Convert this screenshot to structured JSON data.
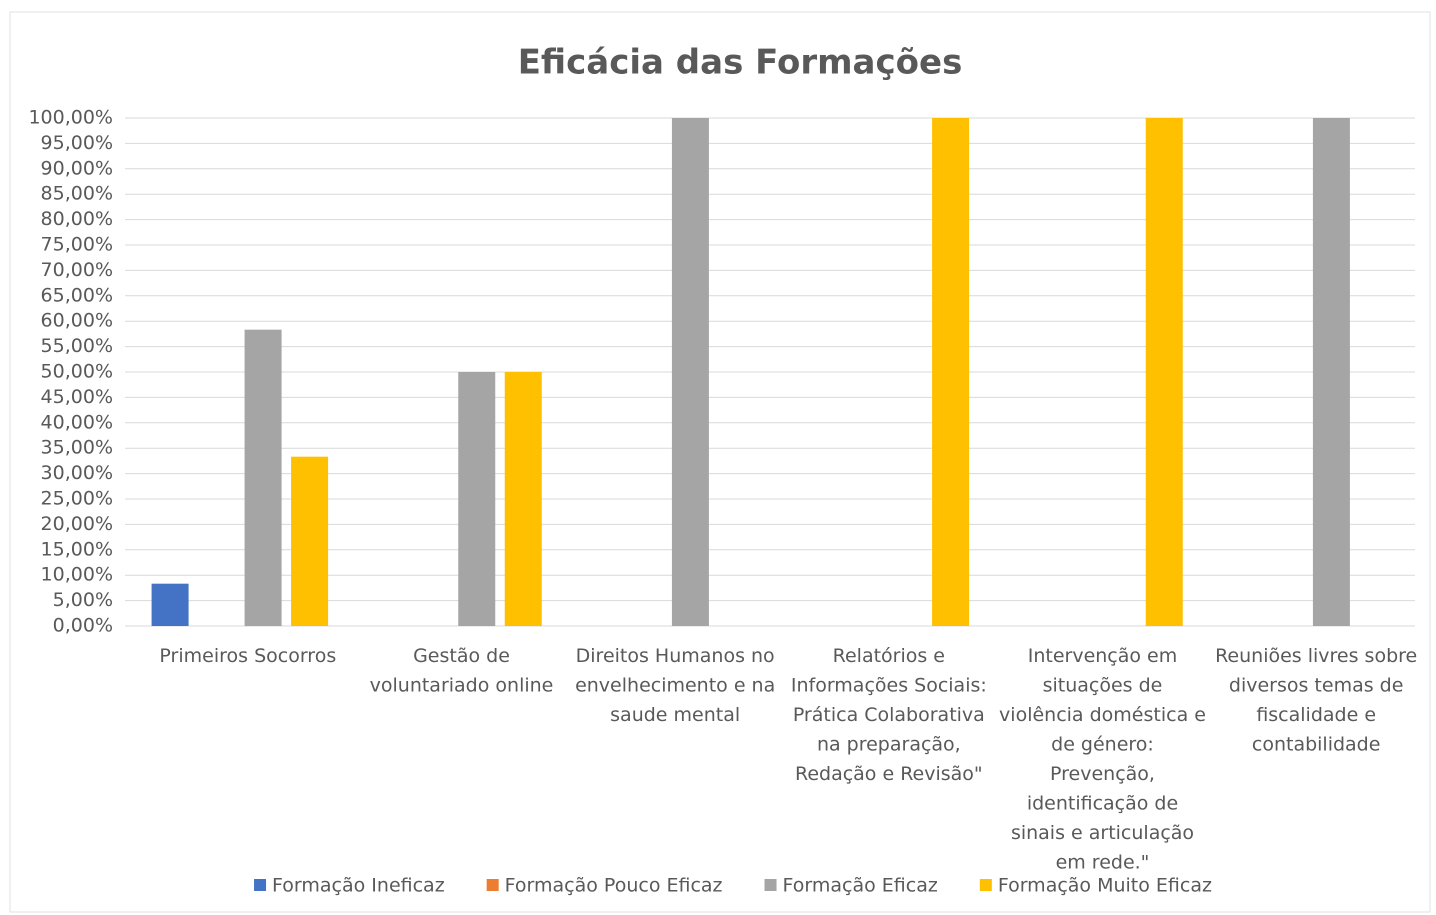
{
  "chart_data": {
    "type": "bar",
    "title": "Eficácia das Formações",
    "categories": [
      "Primeiros Socorros",
      "Gestão de voluntariado online",
      "Direitos Humanos no envelhecimento e na saude mental",
      "Relatórios e Informações Sociais: Prática Colaborativa na preparação, Redação e Revisão\"",
      "Intervenção em situações de violência doméstica e de género: Prevenção, identificação de sinais e articulação em rede.\"",
      "Reuniões livres sobre diversos temas de fiscalidade e contabilidade"
    ],
    "series": [
      {
        "name": "Formação Ineficaz",
        "color": "#4472c4",
        "values": [
          8.33,
          0,
          0,
          0,
          0,
          0
        ]
      },
      {
        "name": "Formação Pouco Eficaz",
        "color": "#ed7d31",
        "values": [
          0,
          0,
          0,
          0,
          0,
          0
        ]
      },
      {
        "name": "Formação Eficaz",
        "color": "#a5a5a5",
        "values": [
          58.33,
          50,
          100,
          0,
          0,
          100
        ]
      },
      {
        "name": "Formação Muito Eficaz",
        "color": "#ffc000",
        "values": [
          33.33,
          50,
          0,
          100,
          100,
          0
        ]
      }
    ],
    "ylim": [
      0,
      100
    ],
    "yticks": [
      {
        "value": 0,
        "label": "0,00%"
      },
      {
        "value": 5,
        "label": "5,00%"
      },
      {
        "value": 10,
        "label": "10,00%"
      },
      {
        "value": 15,
        "label": "15,00%"
      },
      {
        "value": 20,
        "label": "20,00%"
      },
      {
        "value": 25,
        "label": "25,00%"
      },
      {
        "value": 30,
        "label": "30,00%"
      },
      {
        "value": 35,
        "label": "35,00%"
      },
      {
        "value": 40,
        "label": "40,00%"
      },
      {
        "value": 45,
        "label": "45,00%"
      },
      {
        "value": 50,
        "label": "50,00%"
      },
      {
        "value": 55,
        "label": "55,00%"
      },
      {
        "value": 60,
        "label": "60,00%"
      },
      {
        "value": 65,
        "label": "65,00%"
      },
      {
        "value": 70,
        "label": "70,00%"
      },
      {
        "value": 75,
        "label": "75,00%"
      },
      {
        "value": 80,
        "label": "80,00%"
      },
      {
        "value": 85,
        "label": "85,00%"
      },
      {
        "value": 90,
        "label": "90,00%"
      },
      {
        "value": 95,
        "label": "95,00%"
      },
      {
        "value": 100,
        "label": "100,00%"
      }
    ],
    "grid": true,
    "legend": "bottom"
  }
}
